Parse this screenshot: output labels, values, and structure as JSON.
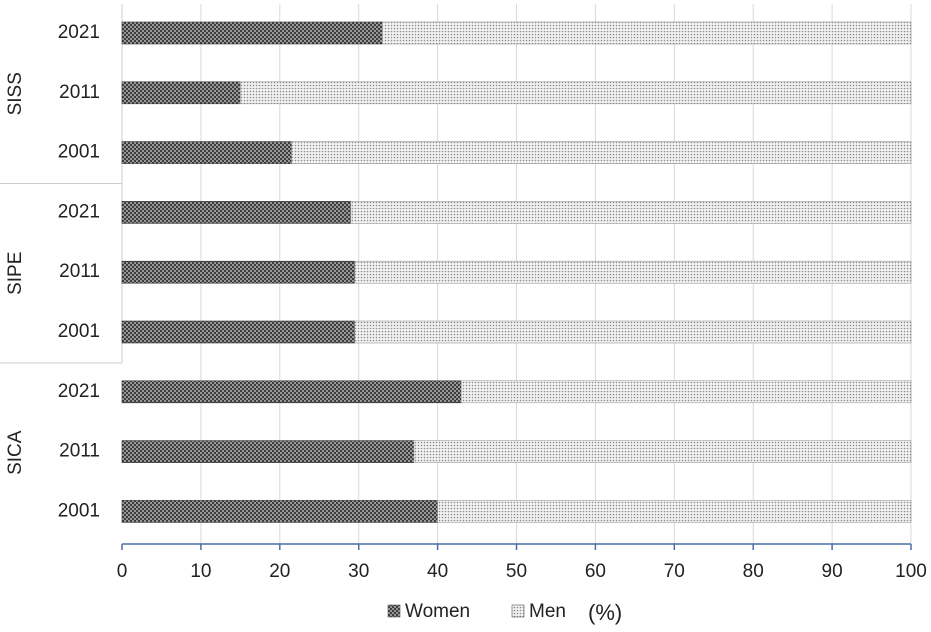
{
  "chart_data": {
    "type": "bar",
    "orientation": "horizontal",
    "stacked": true,
    "percent": true,
    "groups": [
      {
        "name": "SISS",
        "categories": [
          "2021",
          "2011",
          "2001"
        ]
      },
      {
        "name": "SIPE",
        "categories": [
          "2021",
          "2011",
          "2001"
        ]
      },
      {
        "name": "SICA",
        "categories": [
          "2021",
          "2011",
          "2001"
        ]
      }
    ],
    "series": [
      {
        "name": "Women",
        "values": [
          33,
          15,
          21.5,
          29,
          29.5,
          29.5,
          43,
          37,
          40
        ]
      },
      {
        "name": "Men",
        "values": [
          67,
          85,
          78.5,
          71,
          70.5,
          70.5,
          57,
          63,
          60
        ]
      }
    ],
    "xlim": [
      0,
      100
    ],
    "x_ticks": [
      "0",
      "10",
      "20",
      "30",
      "40",
      "50",
      "60",
      "70",
      "80",
      "90",
      "100"
    ],
    "xlabel": "(%)",
    "grid": "vertical",
    "legend_position": "bottom",
    "colors": {
      "women": "#5a5a5a",
      "men": "#cfcfcf",
      "axis": "#4a6fa5",
      "grid": "#d9d9d9"
    }
  }
}
